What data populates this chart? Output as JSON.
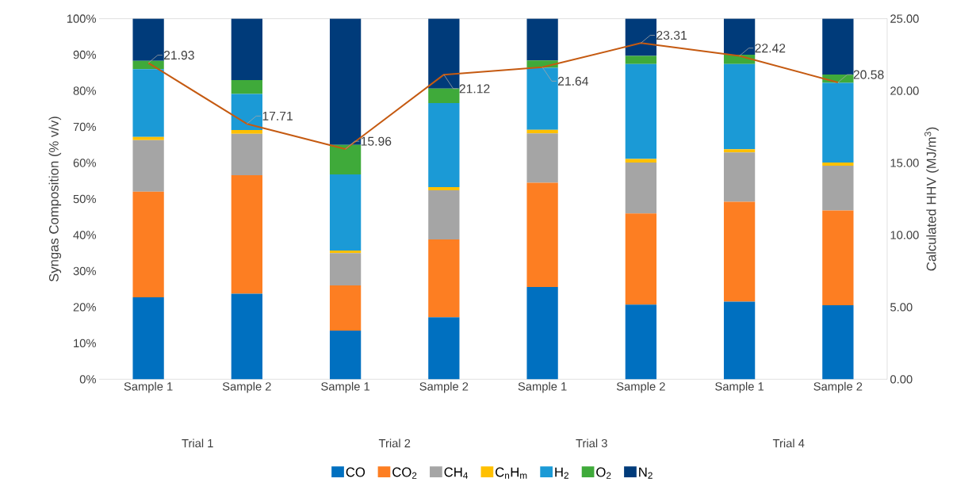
{
  "chart_data": {
    "type": "bar",
    "stacked": true,
    "categories": [
      "Sample 1",
      "Sample 2",
      "Sample 1",
      "Sample 2",
      "Sample 1",
      "Sample 2",
      "Sample 1",
      "Sample 2"
    ],
    "annotations": [
      "Trial 1",
      "Trial 2",
      "Trial 3",
      "Trial 4"
    ],
    "ylabel": "Syngas Composition (% v/v)",
    "y2label": "Calculated HHV (MJ/m$^{3}$)",
    "ylim": [
      0,
      100
    ],
    "yticks": [
      {
        "value": 0,
        "label": "0%"
      },
      {
        "value": 10,
        "label": "10%"
      },
      {
        "value": 20,
        "label": "20%"
      },
      {
        "value": 30,
        "label": "30%"
      },
      {
        "value": 40,
        "label": "40%"
      },
      {
        "value": 50,
        "label": "50%"
      },
      {
        "value": 60,
        "label": "60%"
      },
      {
        "value": 70,
        "label": "70%"
      },
      {
        "value": 80,
        "label": "80%"
      },
      {
        "value": 90,
        "label": "90%"
      },
      {
        "value": 100,
        "label": "100%"
      }
    ],
    "y2lim": [
      0,
      25
    ],
    "y2ticks": [
      {
        "value": 0,
        "label": "0.00"
      },
      {
        "value": 5,
        "label": "5.00"
      },
      {
        "value": 10,
        "label": "10.00"
      },
      {
        "value": 15,
        "label": "15.00"
      },
      {
        "value": 20,
        "label": "20.00"
      },
      {
        "value": 25,
        "label": "25.00"
      }
    ],
    "legend": "bottom",
    "grid": false,
    "series": [
      {
        "name": "CO",
        "color": "#0070c0",
        "values": [
          22.7,
          23.7,
          13.5,
          17.2,
          25.6,
          20.7,
          21.5,
          20.5
        ]
      },
      {
        "name": "CO$_{2}$",
        "color": "#fd7e22",
        "values": [
          29.3,
          32.9,
          12.5,
          21.6,
          28.9,
          25.3,
          27.7,
          26.3
        ]
      },
      {
        "name": "CH$_{4}$",
        "color": "#a5a5a5",
        "values": [
          14.3,
          11.5,
          9.0,
          13.6,
          13.7,
          14.1,
          13.7,
          12.4
        ]
      },
      {
        "name": "C$_{n}$H$_{m}$",
        "color": "#ffc000",
        "values": [
          0.9,
          1.0,
          0.7,
          0.9,
          1.0,
          1.0,
          0.9,
          0.9
        ]
      },
      {
        "name": "H$_{2}$",
        "color": "#1b9ad6",
        "values": [
          18.8,
          10.0,
          21.1,
          23.3,
          17.2,
          26.3,
          23.6,
          22.1
        ]
      },
      {
        "name": "O$_{2}$",
        "color": "#3faa3a",
        "values": [
          2.3,
          3.9,
          8.2,
          4.0,
          2.0,
          2.3,
          2.6,
          2.3
        ]
      },
      {
        "name": "N$_{2}$",
        "color": "#003b7a",
        "values": [
          11.7,
          17.0,
          35.0,
          19.4,
          11.6,
          10.3,
          10.0,
          15.5
        ]
      },
      {
        "type": "line",
        "axis": "y2",
        "color": "#c55a11",
        "values": [
          21.93,
          17.71,
          15.96,
          21.12,
          21.64,
          23.31,
          22.42,
          20.58
        ],
        "value_labels": [
          "21.93",
          "17.71",
          "15.96",
          "21.12",
          "21.64",
          "23.31",
          "22.42",
          "20.58"
        ]
      }
    ]
  }
}
